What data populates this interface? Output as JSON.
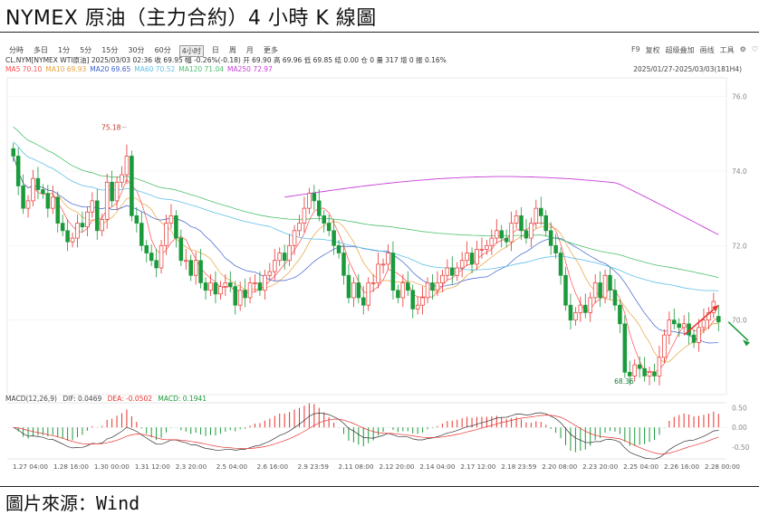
{
  "title": "NYMEX 原油（主力合約）4 小時 K 線圖",
  "source": "圖片來源：Wind",
  "toolbar": {
    "periods": [
      "分時",
      "多日",
      "1分",
      "5分",
      "15分",
      "30分",
      "60分",
      "4小时",
      "日",
      "周",
      "月",
      "更多"
    ],
    "active_index": 7,
    "right_tools": [
      "F9",
      "复权",
      "超级叠加",
      "画线",
      "工具",
      "⚙",
      "♡"
    ]
  },
  "quote": {
    "text": "CL.NYM[NYMEX WTI原油]  2025/03/03 02:36  收 69.95  幅 -0.26%(-0.18)  开 69.90  高 69.96  低 69.85  结 0.00  仓 0  量 317  增 0  振 0.16%"
  },
  "ma_legend": [
    {
      "label": "MA5 70.10",
      "color": "#ff4d4d"
    },
    {
      "label": "MA10 69.93",
      "color": "#e6a23c"
    },
    {
      "label": "MA20 69.65",
      "color": "#3a5fcd"
    },
    {
      "label": "MA60 70.52",
      "color": "#5fc0e8"
    },
    {
      "label": "MA120 71.04",
      "color": "#4cc06c"
    },
    {
      "label": "MA250 72.97",
      "color": "#c83cd8"
    }
  ],
  "range_label": "2025/01/27-2025/03/03(181H4)",
  "macd_legend": {
    "name": "MACD(12,26,9)",
    "dif": "DIF: 0.0469",
    "dea": "DEA: -0.0502",
    "macd": "MACD: 0.1941"
  },
  "colors": {
    "up": "#e8322e",
    "down": "#1a9a3a"
  },
  "chart_data": {
    "type": "candlestick",
    "ylim": [
      68.0,
      76.5
    ],
    "y_ticks": [
      "76.0",
      "74.0",
      "72.0",
      "70.0"
    ],
    "macd_ylim": [
      -0.75,
      0.6
    ],
    "macd_ticks": [
      "0.50",
      "0.00",
      "-0.50"
    ],
    "x_ticks": [
      "1.27 04:00",
      "1.28 16:00",
      "1.30 00:00",
      "1.31 12:00",
      "2.3 20:00",
      "2.5 04:00",
      "2.6 16:00",
      "2.9 23:59",
      "2.11 08:00",
      "2.12 20:00",
      "2.14 04:00",
      "2.17 12:00",
      "2.18 23:59",
      "2.20 08:00",
      "2.23 20:00",
      "2.25 04:00",
      "2.26 16:00",
      "2.28 00:00"
    ],
    "annotations": [
      {
        "text": "75.18",
        "value": 75.18
      },
      {
        "text": "68.36",
        "value": 68.36
      }
    ],
    "closes": [
      74.4,
      73.6,
      73.0,
      73.2,
      73.8,
      73.5,
      73.4,
      73.0,
      73.3,
      72.6,
      72.4,
      72.1,
      72.2,
      72.6,
      72.5,
      72.9,
      73.2,
      72.4,
      72.7,
      73.7,
      73.2,
      73.7,
      73.9,
      74.4,
      72.8,
      72.6,
      72.0,
      71.8,
      71.6,
      71.4,
      72.0,
      72.6,
      72.8,
      72.2,
      71.6,
      71.6,
      71.2,
      71.6,
      71.0,
      70.8,
      71.0,
      70.7,
      70.9,
      71.0,
      70.9,
      70.4,
      70.8,
      70.6,
      71.0,
      71.0,
      70.8,
      71.2,
      71.3,
      71.6,
      71.8,
      71.6,
      72.0,
      72.4,
      72.6,
      73.0,
      73.4,
      73.2,
      72.8,
      72.6,
      72.4,
      72.0,
      71.8,
      71.2,
      70.6,
      71.0,
      70.6,
      70.4,
      71.0,
      71.0,
      71.5,
      71.5,
      71.8,
      70.8,
      70.6,
      71.0,
      70.8,
      70.3,
      70.4,
      70.6,
      71.0,
      70.8,
      71.0,
      71.2,
      71.4,
      71.2,
      71.4,
      71.6,
      71.8,
      71.5,
      71.9,
      71.9,
      72.0,
      72.2,
      72.4,
      72.2,
      72.1,
      72.6,
      72.8,
      72.4,
      72.2,
      72.6,
      73.0,
      72.8,
      72.4,
      72.0,
      71.8,
      71.2,
      70.4,
      70.0,
      70.2,
      70.4,
      70.2,
      70.6,
      71.0,
      70.6,
      71.2,
      70.8,
      70.4,
      69.9,
      68.6,
      68.5,
      68.8,
      68.7,
      68.5,
      68.6,
      68.5,
      69.0,
      69.6,
      70.0,
      69.9,
      69.8,
      69.9,
      69.6,
      69.4,
      69.8,
      70.0,
      70.2,
      70.5,
      69.95
    ],
    "opens": [
      74.6,
      74.4,
      73.6,
      73.0,
      73.2,
      73.8,
      73.5,
      73.4,
      73.0,
      73.3,
      72.6,
      72.4,
      72.1,
      72.2,
      72.6,
      72.5,
      72.9,
      73.2,
      72.4,
      72.7,
      73.7,
      73.2,
      73.7,
      73.9,
      74.4,
      72.8,
      72.6,
      72.0,
      71.8,
      71.6,
      71.4,
      72.0,
      72.6,
      72.8,
      72.2,
      71.6,
      71.6,
      71.2,
      71.6,
      71.0,
      70.8,
      71.0,
      70.7,
      70.9,
      71.0,
      70.9,
      70.4,
      70.8,
      70.6,
      71.0,
      71.0,
      70.8,
      71.2,
      71.3,
      71.6,
      71.8,
      71.6,
      72.0,
      72.4,
      72.6,
      73.0,
      73.4,
      73.2,
      72.8,
      72.6,
      72.4,
      72.0,
      71.8,
      71.2,
      70.6,
      71.0,
      70.6,
      70.4,
      71.0,
      71.0,
      71.5,
      71.5,
      71.8,
      70.8,
      70.6,
      71.0,
      70.8,
      70.3,
      70.4,
      70.6,
      71.0,
      70.8,
      71.0,
      71.2,
      71.4,
      71.2,
      71.4,
      71.6,
      71.8,
      71.5,
      71.9,
      71.9,
      72.0,
      72.2,
      72.4,
      72.2,
      72.1,
      72.6,
      72.8,
      72.4,
      72.2,
      72.6,
      73.0,
      72.8,
      72.4,
      72.0,
      71.8,
      71.2,
      70.4,
      70.0,
      70.2,
      70.4,
      70.2,
      70.6,
      71.0,
      70.6,
      71.2,
      70.8,
      70.4,
      69.9,
      68.6,
      68.5,
      68.8,
      68.7,
      68.5,
      68.6,
      68.5,
      69.0,
      69.6,
      70.0,
      69.9,
      69.8,
      69.9,
      69.6,
      69.4,
      69.8,
      70.0,
      70.2,
      70.1
    ]
  }
}
